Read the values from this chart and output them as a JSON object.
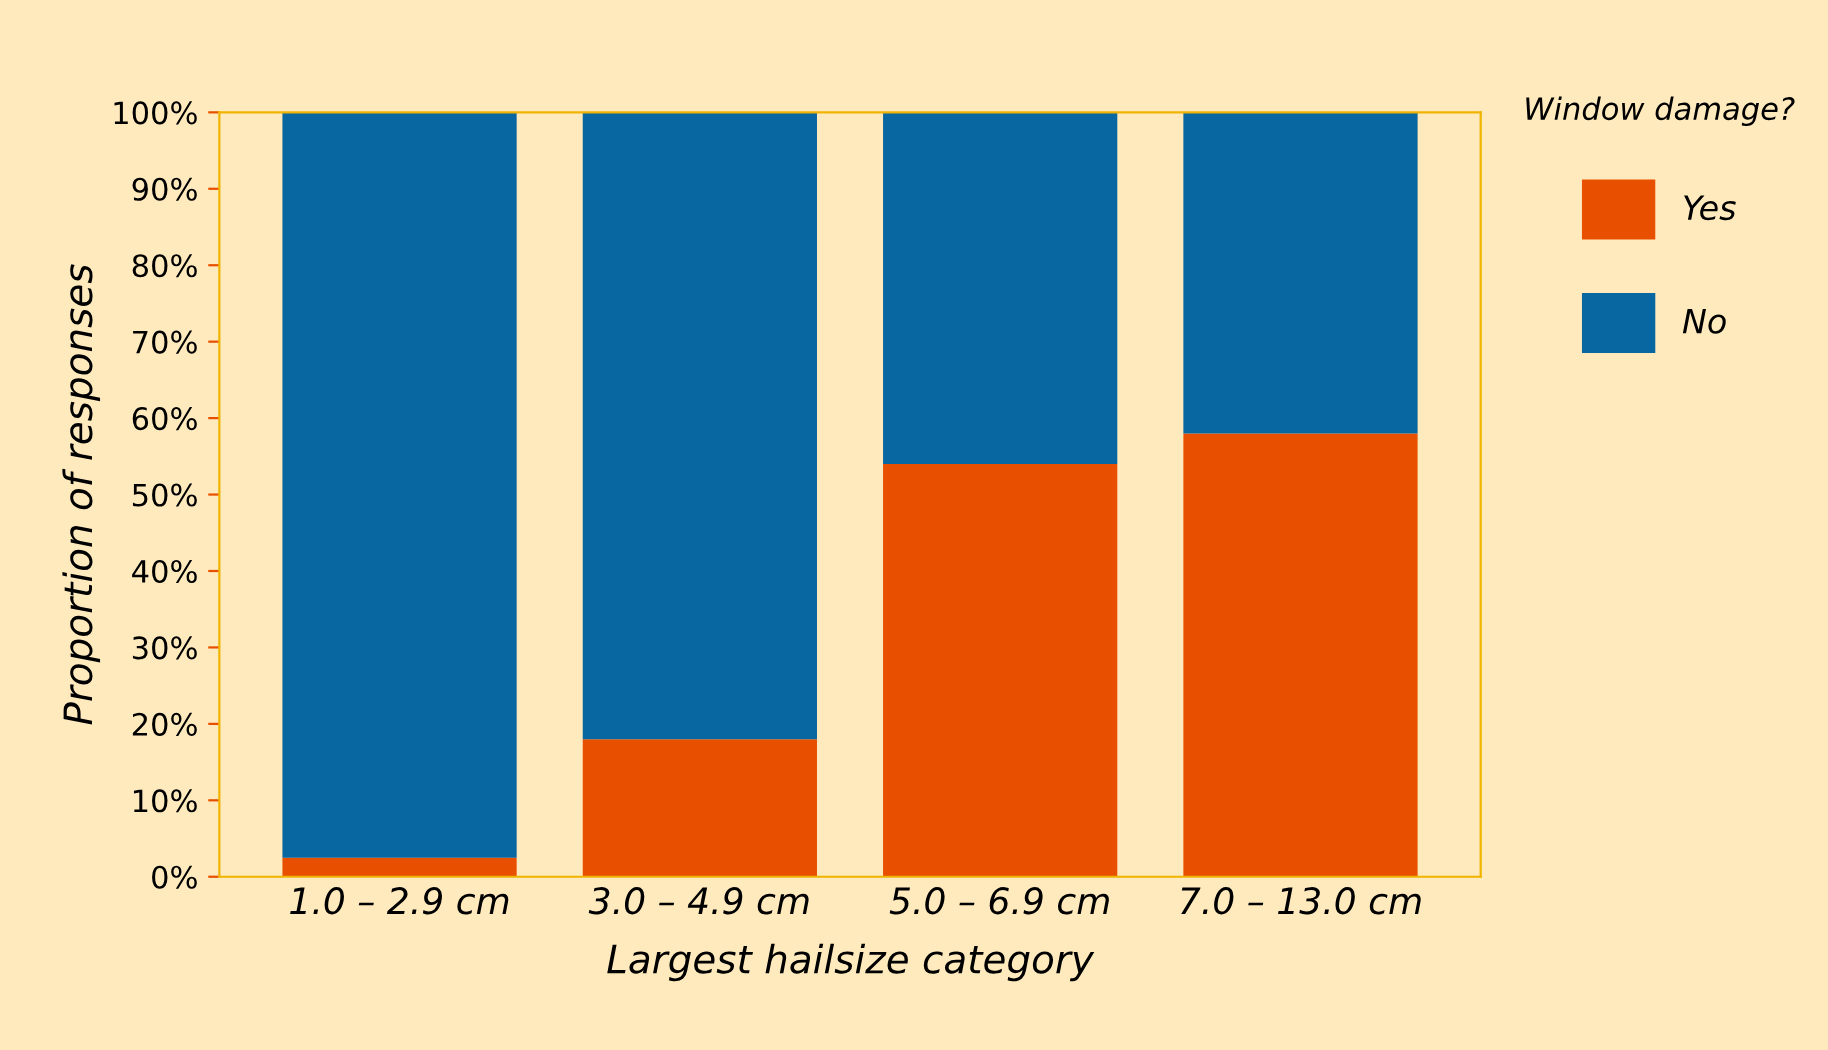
{
  "chart_data": {
    "type": "bar",
    "stacked": true,
    "xlabel": "Largest hailsize category",
    "ylabel": "Proportion of responses",
    "legend_title": "Window damage?",
    "legend": "top right",
    "categories": [
      "1.0 – 2.9 cm",
      "3.0 – 4.9 cm",
      "5.0 – 6.9 cm",
      "7.0 – 13.0 cm"
    ],
    "series": [
      {
        "name": "Yes",
        "color": "#e85000",
        "values": [
          2.5,
          18,
          54,
          58
        ]
      },
      {
        "name": "No",
        "color": "#0866a0",
        "values": [
          97.5,
          82,
          46,
          42
        ]
      }
    ],
    "ylim": [
      0,
      100
    ],
    "yticks": [
      {
        "value": 0,
        "label": "0%"
      },
      {
        "value": 10,
        "label": "10%"
      },
      {
        "value": 20,
        "label": "20%"
      },
      {
        "value": 30,
        "label": "30%"
      },
      {
        "value": 40,
        "label": "40%"
      },
      {
        "value": 50,
        "label": "50%"
      },
      {
        "value": 60,
        "label": "60%"
      },
      {
        "value": 70,
        "label": "70%"
      },
      {
        "value": 80,
        "label": "80%"
      },
      {
        "value": 90,
        "label": "90%"
      },
      {
        "value": 100,
        "label": "100%"
      }
    ],
    "grid": false
  }
}
